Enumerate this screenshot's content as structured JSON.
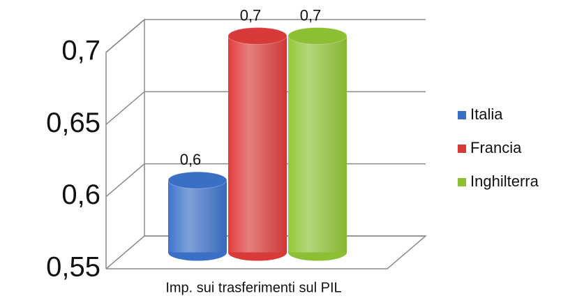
{
  "chart_data": {
    "type": "bar3d",
    "categories": [
      "Imp. sui trasferimenti sul PIL"
    ],
    "series": [
      {
        "name": "Italia",
        "color": "#3a6fc4",
        "values": [
          0.6
        ],
        "value_labels": [
          "0,6"
        ]
      },
      {
        "name": "Francia",
        "color": "#d83a3a",
        "values": [
          0.7
        ],
        "value_labels": [
          "0,7"
        ]
      },
      {
        "name": "Inghilterra",
        "color": "#8dbf35",
        "values": [
          0.7
        ],
        "value_labels": [
          "0,7"
        ]
      }
    ],
    "ylim": [
      0.55,
      0.7
    ],
    "yticks": [
      {
        "value": 0.55,
        "label": "0,55"
      },
      {
        "value": 0.6,
        "label": "0,6"
      },
      {
        "value": 0.65,
        "label": "0,65"
      },
      {
        "value": 0.7,
        "label": "0,7"
      }
    ],
    "grid": true,
    "legend": "right"
  }
}
